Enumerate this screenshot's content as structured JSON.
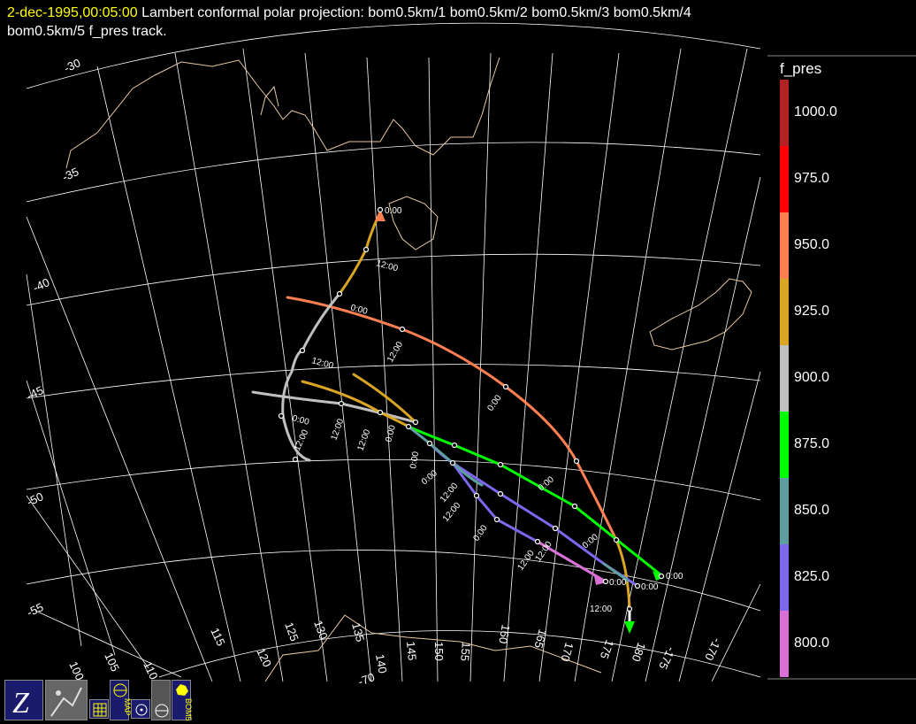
{
  "title": {
    "date": "2-dec-1995,00:05:00",
    "line1_rest": " Lambert conformal polar projection:  bom0.5km/1 bom0.5km/2 bom0.5km/3 bom0.5km/4",
    "line2": "bom0.5km/5 f_pres track."
  },
  "legend": {
    "title": "f_pres",
    "bands": [
      {
        "label": "1000.0",
        "color": "#b22222"
      },
      {
        "label": "975.0",
        "color": "#ff0000"
      },
      {
        "label": "950.0",
        "color": "#ff7f50"
      },
      {
        "label": "925.0",
        "color": "#daa520"
      },
      {
        "label": "900.0",
        "color": "#c0c0c0"
      },
      {
        "label": "875.0",
        "color": "#00ff00"
      },
      {
        "label": "850.0",
        "color": "#5f9ea0"
      },
      {
        "label": "825.0",
        "color": "#7b68ee"
      },
      {
        "label": "800.0",
        "color": "#da70d6"
      }
    ]
  },
  "map": {
    "lat_labels": [
      "-30",
      "-35",
      "-40",
      "-45",
      "-50",
      "-55",
      "-70"
    ],
    "lon_labels": [
      "100",
      "105",
      "110",
      "115",
      "120",
      "125",
      "130",
      "135",
      "140",
      "145",
      "150",
      "155",
      "160",
      "165",
      "170",
      "175",
      "180",
      "-175",
      "-170"
    ],
    "time_labels": [
      "0:00",
      "12:00",
      "0:00",
      "12:00",
      "0:00",
      "12:00",
      "12:00",
      "0:00",
      "12:00",
      "0:00",
      "0:00",
      "12:00",
      "0:00",
      "12:00",
      "12:00",
      "0:00",
      "12:00",
      "0:00",
      "12:00",
      "0:00",
      "0:00",
      "0:00",
      "12:00",
      "0:00"
    ]
  },
  "toolbar": {
    "buttons": [
      "zebra-logo-button",
      "satellite-image-button",
      "grid-button",
      "map-button",
      "circle-button",
      "globe-button",
      "bom-button"
    ],
    "map_label": "MAP",
    "bom_label": "BOM5"
  }
}
